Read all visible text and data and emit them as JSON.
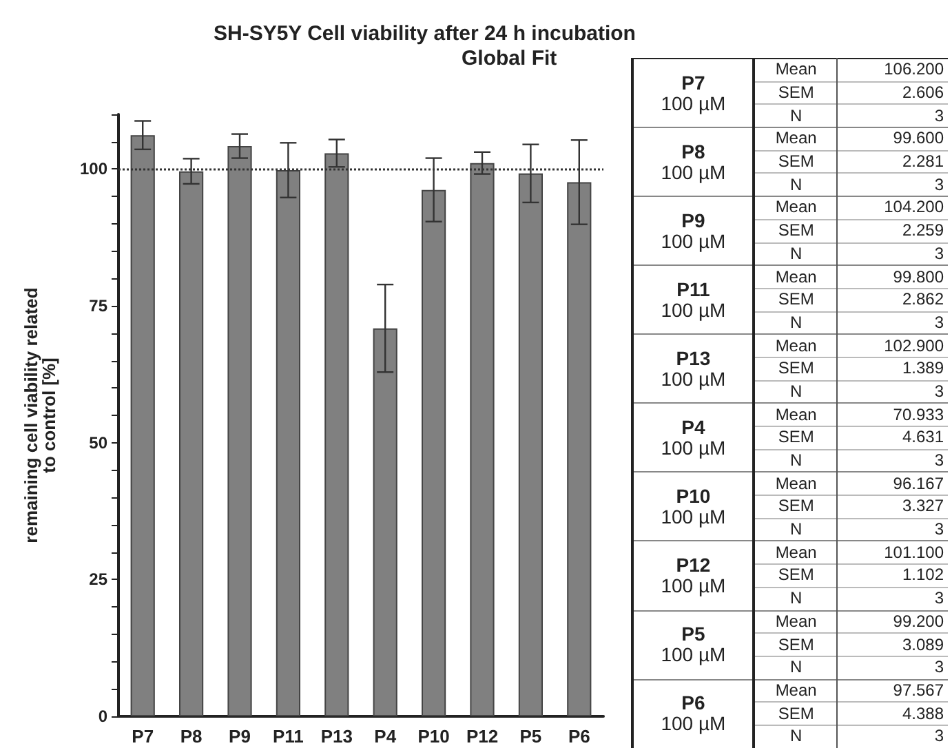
{
  "chart_data": [
    {
      "type": "bar",
      "title": "SH-SY5Y Cell viability after 24 h incubation",
      "subtitle": "Global Fit",
      "ylabel": "remaining cell viability related\nto control [%]",
      "categories": [
        "P7",
        "P8",
        "P9",
        "P11",
        "P13",
        "P4",
        "P10",
        "P12",
        "P5",
        "P6"
      ],
      "values": [
        106.2,
        99.6,
        104.2,
        99.8,
        102.9,
        70.9,
        96.2,
        101.1,
        99.2,
        97.6
      ],
      "errors": [
        2.6,
        2.3,
        2.2,
        5.0,
        2.5,
        8.0,
        5.8,
        2.0,
        5.3,
        7.7
      ],
      "color": "#808080",
      "ylim": [
        0,
        110
      ],
      "yticks": [
        0,
        {
          "value": 5,
          "label": null
        },
        {
          "value": 10,
          "label": null
        },
        {
          "value": 15,
          "label": null
        },
        {
          "value": 20,
          "label": null
        },
        25,
        {
          "value": 30,
          "label": null
        },
        {
          "value": 35,
          "label": null
        },
        {
          "value": 40,
          "label": null
        },
        {
          "value": 45,
          "label": null
        },
        50,
        {
          "value": 55,
          "label": null
        },
        {
          "value": 60,
          "label": null
        },
        {
          "value": 65,
          "label": null
        },
        {
          "value": 70,
          "label": null
        },
        75,
        {
          "value": 80,
          "label": null
        },
        {
          "value": 85,
          "label": null
        },
        {
          "value": 90,
          "label": null
        },
        {
          "value": 95,
          "label": null
        },
        100,
        {
          "value": 105,
          "label": null
        },
        {
          "value": 110,
          "label": null
        }
      ],
      "ref_lines": [
        {
          "axis": "y",
          "value": 100,
          "line_style": "dotted",
          "color": "#333333"
        }
      ],
      "grid": false
    },
    {
      "type": "other",
      "annotations": [
        "P7",
        "100 µM",
        "Mean",
        "106.200",
        "SEM",
        "2.606",
        "N",
        "3",
        "P8",
        "100 µM",
        "Mean",
        "99.600",
        "SEM",
        "2.281",
        "N",
        "3",
        "P9",
        "100 µM",
        "Mean",
        "104.200",
        "SEM",
        "2.259",
        "N",
        "3",
        "P11",
        "100 µM",
        "Mean",
        "99.800",
        "SEM",
        "2.862",
        "N",
        "3",
        "P13",
        "100 µM",
        "Mean",
        "102.900",
        "SEM",
        "1.389",
        "N",
        "3",
        "P4",
        "100 µM",
        "Mean",
        "70.933",
        "SEM",
        "4.631",
        "N",
        "3",
        "P10",
        "100 µM",
        "Mean",
        "96.167",
        "SEM",
        "3.327",
        "N",
        "3",
        "P12",
        "100 µM",
        "Mean",
        "101.100",
        "SEM",
        "1.102",
        "N",
        "3",
        "P5",
        "100 µM",
        "Mean",
        "99.200",
        "SEM",
        "3.089",
        "N",
        "3",
        "P6",
        "100 µM",
        "Mean",
        "97.567",
        "SEM",
        "4.388",
        "N",
        "3"
      ]
    }
  ]
}
